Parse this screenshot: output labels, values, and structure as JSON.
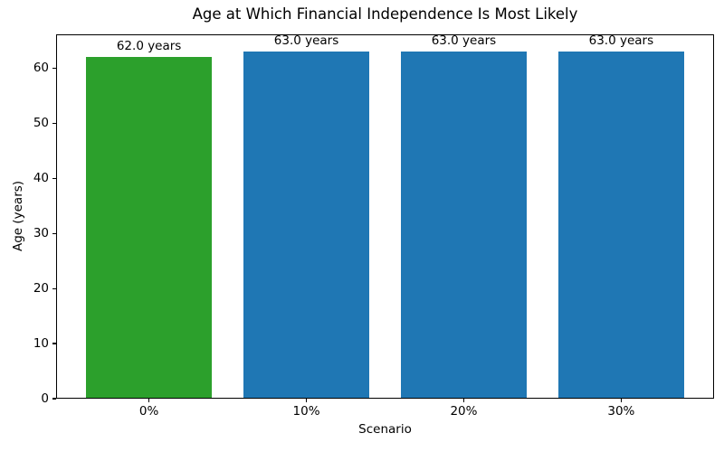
{
  "chart": {
    "title": "Age at Which Financial Independence Is Most Likely",
    "xlabel": "Scenario",
    "ylabel": "Age (years)"
  },
  "chart_data": {
    "type": "bar",
    "title": "Age at Which Financial Independence Is Most Likely",
    "xlabel": "Scenario",
    "ylabel": "Age (years)",
    "categories": [
      "0%",
      "10%",
      "20%",
      "30%"
    ],
    "values": [
      62.0,
      63.0,
      63.0,
      63.0
    ],
    "bar_labels": [
      "62.0 years",
      "63.0 years",
      "63.0 years",
      "63.0 years"
    ],
    "bar_colors": [
      "#2ca02c",
      "#1f77b4",
      "#1f77b4",
      "#1f77b4"
    ],
    "ylim": [
      0,
      66.15
    ],
    "yticks": [
      0,
      10,
      20,
      30,
      40,
      50,
      60
    ],
    "grid": false,
    "legend_visible": false,
    "background_color": "#ffffff",
    "spine_color": "#000000",
    "text_color": "#000000"
  }
}
